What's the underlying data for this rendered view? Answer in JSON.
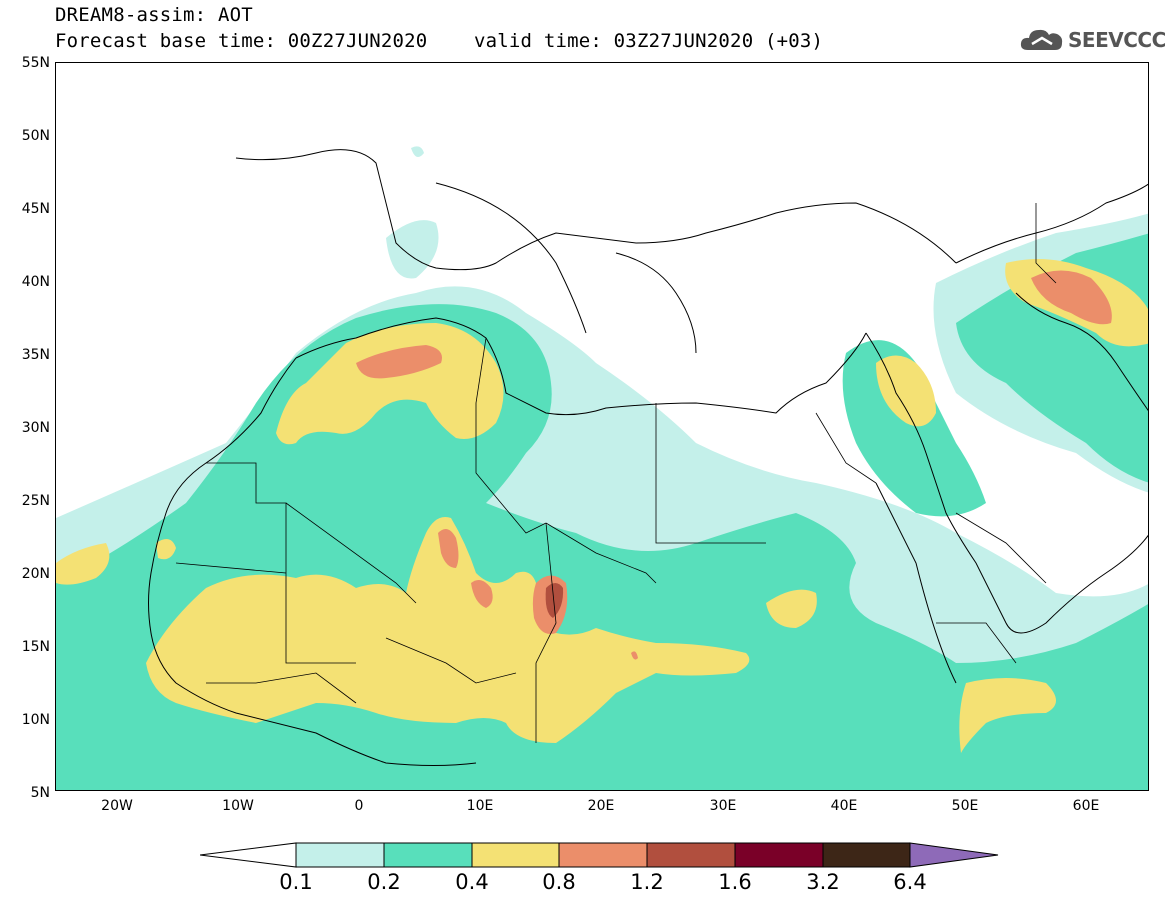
{
  "title": {
    "line1": "DREAM8-assim: AOT",
    "line2": "Forecast base time: 00Z27JUN2020    valid time: 03Z27JUN2020 (+03)"
  },
  "logo": {
    "text": "SEEVCCC",
    "icon": "cloud-icon"
  },
  "axes": {
    "lat_labels": [
      "55N",
      "50N",
      "45N",
      "40N",
      "35N",
      "30N",
      "25N",
      "20N",
      "15N",
      "10N",
      "5N"
    ],
    "lon_labels": [
      "20W",
      "10W",
      "0",
      "10E",
      "20E",
      "30E",
      "40E",
      "50E",
      "60E"
    ]
  },
  "colorbar": {
    "labels": [
      "0.1",
      "0.2",
      "0.4",
      "0.8",
      "1.2",
      "1.6",
      "3.2",
      "6.4"
    ],
    "colors": [
      "#ffffff",
      "#c4f0ea",
      "#58dfbb",
      "#f4e174",
      "#eb8e6a",
      "#b14f3e",
      "#7a0028",
      "#3d2617",
      "#8e6ab8"
    ]
  },
  "colors": {
    "aot_0_1": "#c4f0ea",
    "aot_0_2": "#58dfbb",
    "aot_0_4": "#f4e174",
    "aot_0_8": "#eb8e6a",
    "aot_1_2": "#b14f3e"
  }
}
